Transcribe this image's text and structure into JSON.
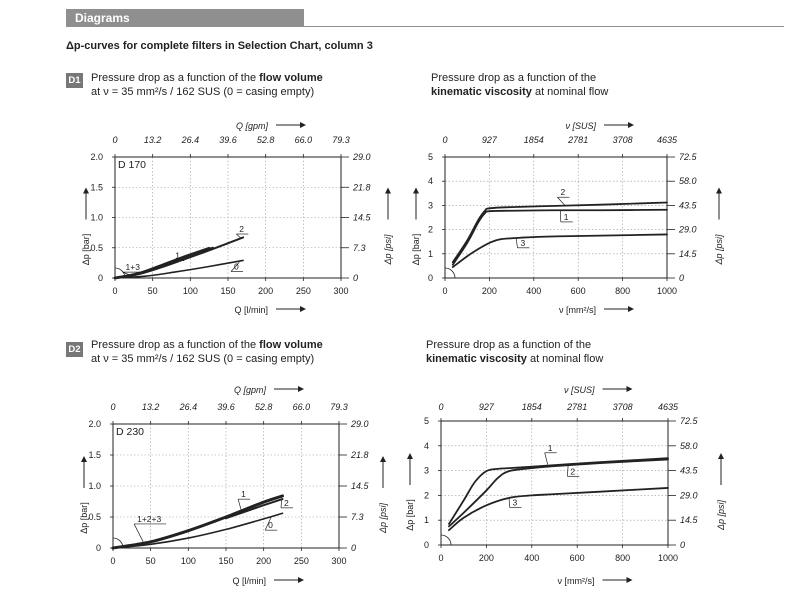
{
  "header": {
    "title": "Diagrams"
  },
  "subtitle": "Δp-curves for complete filters in Selection Chart, column 3",
  "sections": [
    {
      "badge": "D1",
      "flow_caption": {
        "line1_prefix": "Pressure drop as a function of the ",
        "line1_bold": "flow volume",
        "line2": "at ν = 35 mm²/s / 162 SUS (0 = casing empty)"
      },
      "visc_caption": {
        "line1": "Pressure drop as a function of the",
        "line2_bold": "kinematic viscosity",
        "line2_suffix": " at nominal flow"
      }
    },
    {
      "badge": "D2",
      "flow_caption": {
        "line1_prefix": "Pressure drop as a function of the ",
        "line1_bold": "flow volume",
        "line2": "at ν = 35 mm²/s / 162 SUS (0 = casing empty)"
      },
      "visc_caption": {
        "line1": "Pressure drop as a function of the",
        "line2_bold": "kinematic viscosity",
        "line2_suffix": " at nominal flow"
      }
    }
  ],
  "chart_data": [
    {
      "id": "d1-flow",
      "type": "line",
      "label": "D 170",
      "xlabel": "Q [l/min]",
      "x2label": "Q [gpm]",
      "ylabel": "Δp [bar]",
      "y2label": "Δp [psi]",
      "xlim": [
        0,
        300
      ],
      "ylim": [
        0,
        2.0
      ],
      "xticks": [
        "0",
        "50",
        "100",
        "150",
        "200",
        "250",
        "300"
      ],
      "x2ticks": [
        "0",
        "13.2",
        "26.4",
        "39.6",
        "52.8",
        "66.0",
        "79.3"
      ],
      "yticks": [
        "0",
        "0.5",
        "1.0",
        "1.5",
        "2.0"
      ],
      "y2ticks": [
        "0",
        "7.3",
        "14.5",
        "21.8",
        "29.0"
      ],
      "series": [
        {
          "name": "1+3",
          "width": 2.8,
          "x": [
            0,
            30,
            60,
            90,
            125
          ],
          "y": [
            0,
            0.07,
            0.2,
            0.34,
            0.49
          ],
          "label_at": [
            14,
            0.13
          ],
          "leader_to": [
            20,
            0.05
          ]
        },
        {
          "name": "1",
          "width": 2.0,
          "x": [
            90,
            130
          ],
          "y": [
            0.34,
            0.5
          ],
          "label_at": [
            80,
            0.32
          ],
          "leader_to": [
            95,
            0.38
          ]
        },
        {
          "name": "2",
          "width": 2.0,
          "x": [
            0,
            30,
            60,
            90,
            130,
            170
          ],
          "y": [
            0,
            0.06,
            0.17,
            0.3,
            0.48,
            0.67
          ],
          "label_at": [
            165,
            0.76
          ],
          "leader_to": [
            168,
            0.65
          ]
        },
        {
          "name": "0",
          "width": 1.6,
          "x": [
            0,
            40,
            80,
            120,
            170
          ],
          "y": [
            0,
            0.03,
            0.1,
            0.18,
            0.29
          ],
          "label_at": [
            158,
            0.14
          ],
          "leader_to": [
            165,
            0.26
          ]
        }
      ]
    },
    {
      "id": "d1-visc",
      "type": "line",
      "label": "",
      "xlabel": "ν [mm²/s]",
      "x2label": "ν [SUS]",
      "ylabel": "Δp [bar]",
      "y2label": "Δp [psi]",
      "xlim": [
        0,
        1000
      ],
      "ylim": [
        0,
        5
      ],
      "xticks": [
        "0",
        "200",
        "400",
        "600",
        "800",
        "1000"
      ],
      "x2ticks": [
        "0",
        "927",
        "1854",
        "2781",
        "3708",
        "4635"
      ],
      "yticks": [
        "0",
        "1",
        "2",
        "3",
        "4",
        "5"
      ],
      "y2ticks": [
        "0",
        "14.5",
        "29.0",
        "43.5",
        "58.0",
        "72.5"
      ],
      "series": [
        {
          "name": "2",
          "width": 1.8,
          "x": [
            35,
            100,
            150,
            180,
            200,
            300,
            500,
            700,
            1000
          ],
          "y": [
            0.65,
            1.55,
            2.4,
            2.78,
            2.88,
            2.93,
            2.98,
            3.03,
            3.12
          ],
          "label_at": [
            520,
            3.42
          ],
          "leader_to": [
            540,
            3.0
          ]
        },
        {
          "name": "1",
          "width": 1.8,
          "x": [
            35,
            100,
            150,
            180,
            200,
            300,
            500,
            700,
            1000
          ],
          "y": [
            0.55,
            1.45,
            2.3,
            2.68,
            2.76,
            2.78,
            2.8,
            2.8,
            2.82
          ],
          "label_at": [
            535,
            2.4
          ],
          "leader_to": [
            520,
            2.8
          ]
        },
        {
          "name": "3",
          "width": 1.8,
          "x": [
            35,
            100,
            150,
            200,
            250,
            350,
            500,
            700,
            1000
          ],
          "y": [
            0.45,
            0.9,
            1.2,
            1.45,
            1.6,
            1.67,
            1.72,
            1.75,
            1.8
          ],
          "label_at": [
            340,
            1.33
          ],
          "leader_to": [
            320,
            1.67
          ]
        }
      ]
    },
    {
      "id": "d2-flow",
      "type": "line",
      "label": "D 230",
      "xlabel": "Q [l/min]",
      "x2label": "Q [gpm]",
      "ylabel": "Δp [bar]",
      "y2label": "Δp [psi]",
      "xlim": [
        0,
        300
      ],
      "ylim": [
        0,
        2.0
      ],
      "xticks": [
        "0",
        "50",
        "100",
        "150",
        "200",
        "250",
        "300"
      ],
      "x2ticks": [
        "0",
        "13.2",
        "26.4",
        "39.6",
        "52.8",
        "66.0",
        "79.3"
      ],
      "yticks": [
        "0",
        "0.5",
        "1.0",
        "1.5",
        "2.0"
      ],
      "y2ticks": [
        "0",
        "7.3",
        "14.5",
        "21.8",
        "29.0"
      ],
      "series": [
        {
          "name": "1+2+3",
          "width": 3.0,
          "x": [
            0,
            50,
            100,
            150,
            200,
            225
          ],
          "y": [
            0,
            0.1,
            0.28,
            0.5,
            0.74,
            0.84
          ],
          "label_at": [
            32,
            0.42
          ],
          "leader_to": [
            40,
            0.1
          ]
        },
        {
          "name": "1",
          "width": 2.0,
          "x": [
            150,
            190
          ],
          "y": [
            0.5,
            0.69
          ],
          "label_at": [
            170,
            0.82
          ],
          "leader_to": [
            170,
            0.62
          ]
        },
        {
          "name": "2",
          "width": 2.0,
          "x": [
            150,
            200,
            225
          ],
          "y": [
            0.48,
            0.69,
            0.79
          ],
          "label_at": [
            227,
            0.68
          ],
          "leader_to": [
            224,
            0.8
          ]
        },
        {
          "name": "0",
          "width": 1.6,
          "x": [
            0,
            50,
            100,
            150,
            200,
            225
          ],
          "y": [
            0,
            0.06,
            0.16,
            0.3,
            0.47,
            0.56
          ],
          "label_at": [
            206,
            0.32
          ],
          "leader_to": [
            210,
            0.5
          ]
        }
      ]
    },
    {
      "id": "d2-visc",
      "type": "line",
      "label": "",
      "xlabel": "ν [mm²/s]",
      "x2label": "ν [SUS]",
      "ylabel": "Δp [bar]",
      "y2label": "Δp [psi]",
      "xlim": [
        0,
        1000
      ],
      "ylim": [
        0,
        5
      ],
      "xticks": [
        "0",
        "200",
        "400",
        "600",
        "800",
        "1000"
      ],
      "x2ticks": [
        "0",
        "927",
        "1854",
        "2781",
        "3708",
        "4635"
      ],
      "yticks": [
        "0",
        "1",
        "2",
        "3",
        "4",
        "5"
      ],
      "y2ticks": [
        "0",
        "14.5",
        "29.0",
        "43.5",
        "58.0",
        "72.5"
      ],
      "series": [
        {
          "name": "1",
          "width": 1.8,
          "x": [
            35,
            100,
            150,
            200,
            250,
            300,
            500,
            700,
            1000
          ],
          "y": [
            0.85,
            1.8,
            2.55,
            2.98,
            3.07,
            3.1,
            3.22,
            3.34,
            3.5
          ],
          "label_at": [
            470,
            3.8
          ],
          "leader_to": [
            470,
            3.25
          ]
        },
        {
          "name": "2",
          "width": 1.8,
          "x": [
            35,
            100,
            200,
            250,
            300,
            400,
            500,
            700,
            1000
          ],
          "y": [
            0.75,
            1.3,
            2.2,
            2.7,
            2.98,
            3.1,
            3.18,
            3.3,
            3.45
          ],
          "label_at": [
            570,
            2.85
          ],
          "leader_to": [
            560,
            3.22
          ]
        },
        {
          "name": "3",
          "width": 1.8,
          "x": [
            35,
            100,
            200,
            300,
            400,
            500,
            700,
            1000
          ],
          "y": [
            0.6,
            1.1,
            1.6,
            1.9,
            2.0,
            2.05,
            2.15,
            2.3
          ],
          "label_at": [
            315,
            1.6
          ],
          "leader_to": [
            300,
            1.9
          ]
        }
      ]
    }
  ]
}
